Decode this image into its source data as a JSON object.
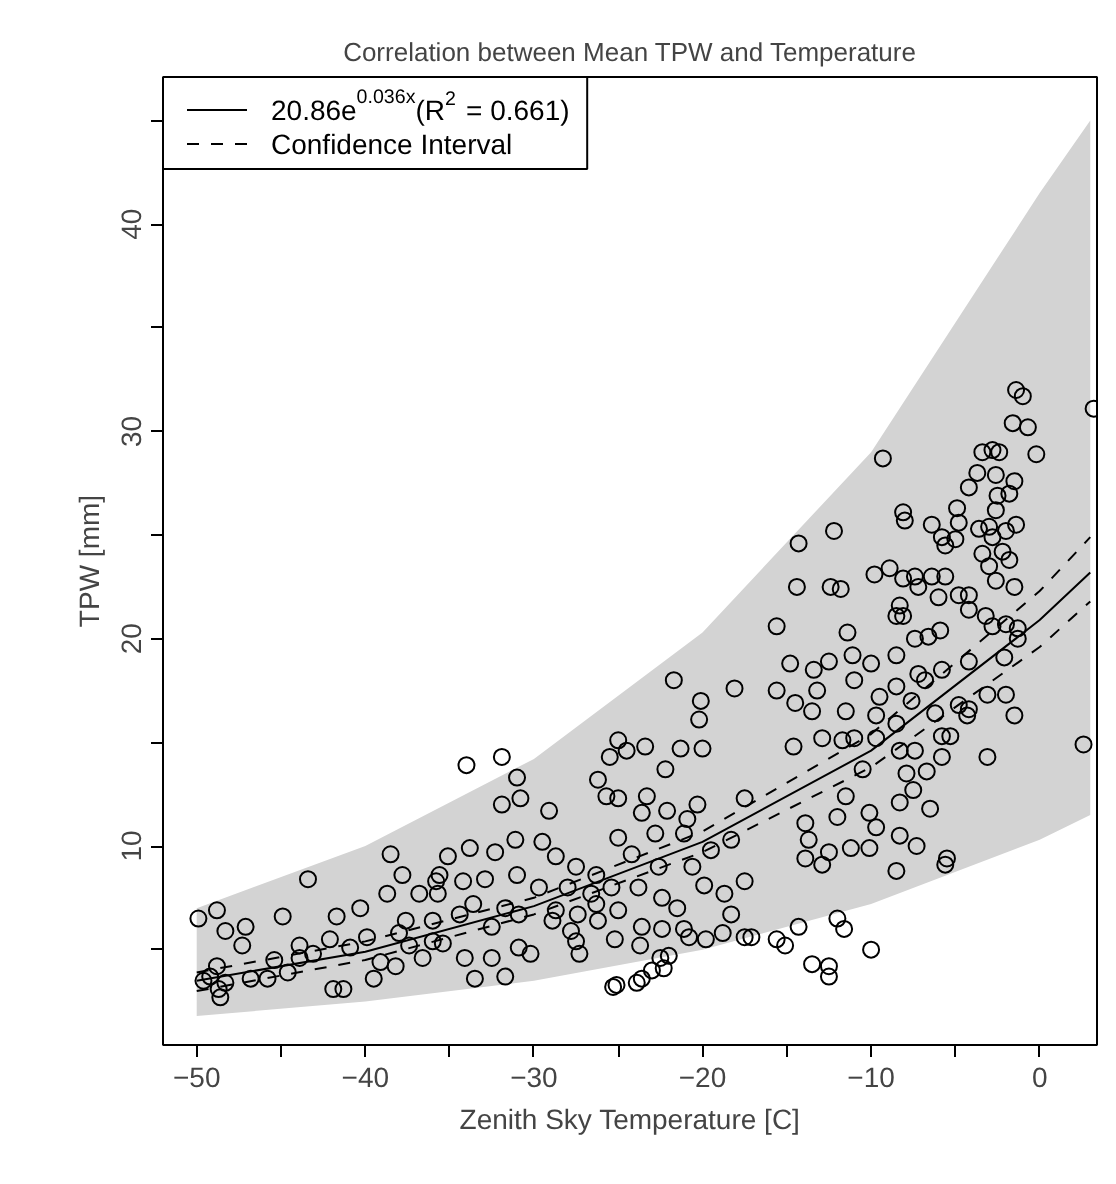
{
  "chart_data": {
    "type": "scatter",
    "title": "Correlation between Mean TPW and Temperature",
    "xlabel": "Zenith Sky Temperature [C]",
    "ylabel": "TPW [mm]",
    "xlim": [
      -52,
      3.4
    ],
    "ylim": [
      0.4,
      47.1
    ],
    "xticks": [
      {
        "value": -50,
        "label": "−50"
      },
      {
        "value": -45,
        "label": null
      },
      {
        "value": -40,
        "label": "−40"
      },
      {
        "value": -35,
        "label": null
      },
      {
        "value": -30,
        "label": "−30"
      },
      {
        "value": -25,
        "label": null
      },
      {
        "value": -20,
        "label": "−20"
      },
      {
        "value": -15,
        "label": null
      },
      {
        "value": -10,
        "label": "−10"
      },
      {
        "value": -5,
        "label": null
      },
      {
        "value": 0,
        "label": "0"
      }
    ],
    "yticks": [
      {
        "value": 5,
        "label": null
      },
      10,
      {
        "value": 15,
        "label": null
      },
      20,
      {
        "value": 25,
        "label": null
      },
      30,
      {
        "value": 35,
        "label": null
      },
      40,
      {
        "value": 45,
        "label": null
      }
    ],
    "grid": false,
    "legend": "top left",
    "series": [
      {
        "marker": "circle",
        "color": "#000000",
        "x": [
          -49.9,
          -48.8,
          -49.6,
          -48.8,
          -49.2,
          -48.7,
          -48.6,
          -48.3,
          -48.3,
          -47.1,
          -47.3,
          -46.8,
          -45.8,
          -44.9,
          -45.4,
          -44.6,
          -43.9,
          -43.4,
          -43.9,
          -43.1,
          -41.9,
          -41.3,
          -42.1,
          -41.7,
          -40.9,
          -40.3,
          -39.9,
          -39.5,
          -39.1,
          -38.7,
          -38.5,
          -37.8,
          -38.2,
          -37.6,
          -38.0,
          -37.4,
          -36.8,
          -36.6,
          -35.8,
          -36.0,
          -34.0,
          -31.9,
          -31.0,
          -31.9,
          -30.8,
          -29.1,
          -35.1,
          -33.8,
          -32.3,
          -31.1,
          -29.5,
          -35.6,
          -34.2,
          -32.9,
          -31.0,
          -28.7,
          -27.5,
          -26.3,
          -35.7,
          -33.6,
          -31.7,
          -29.7,
          -28.0,
          -26.6,
          -25.4,
          -36.0,
          -34.4,
          -32.5,
          -30.9,
          -28.7,
          -27.4,
          -26.2,
          -25.0,
          -35.4,
          -34.1,
          -32.5,
          -30.9,
          -30.2,
          -28.9,
          -27.8,
          -27.3,
          -33.5,
          -31.7,
          -25.3,
          -25.2,
          -26.3,
          -25.0,
          -25.0,
          -25.5,
          -25.0,
          -24.5,
          -23.4,
          -21.7,
          -20.1,
          -20.2,
          -20.0,
          -21.3,
          -22.2,
          -26.2,
          -25.7,
          -23.3,
          -23.6,
          -22.1,
          -20.3,
          -20.9,
          -21.1,
          -22.8,
          -24.2,
          -22.6,
          -20.6,
          -19.5,
          -18.3,
          -17.5,
          -18.1,
          -23.8,
          -22.4,
          -21.5,
          -19.9,
          -18.7,
          -17.5,
          -23.6,
          -22.4,
          -20.8,
          -18.8,
          -17.5,
          -23.7,
          -22.5,
          -23.0,
          -23.9,
          -18.3,
          -27.5,
          -1.4,
          -1.0,
          3.2,
          -1.6,
          -0.7,
          -9.3,
          -0.2,
          -3.4,
          -2.8,
          -2.4,
          -3.7,
          -2.6,
          -1.5,
          -4.2,
          -1.8,
          -2.5,
          -4.9,
          -2.6,
          -8.1,
          -8.0,
          -6.4,
          -4.8,
          -3.6,
          -3.0,
          -1.4,
          -5.8,
          -5.0,
          -2.8,
          -2.0,
          -5.6,
          -3.4,
          -2.2,
          -14.3,
          -12.2,
          -1.8,
          -8.9,
          -9.8,
          -8.1,
          -7.4,
          -6.4,
          -5.6,
          -3.0,
          -14.4,
          -12.4,
          -11.8,
          -7.2,
          -6.0,
          -4.8,
          -4.2,
          -2.6,
          -1.5,
          -8.3,
          -8.1,
          -4.2,
          -3.2,
          -2.0,
          -1.3,
          -15.6,
          -11.4,
          -8.5,
          -7.4,
          -6.6,
          -5.9,
          -1.3,
          -2.8,
          -8.5,
          -14.8,
          -13.4,
          -12.5,
          -11.1,
          -10.0,
          -11.0,
          -15.6,
          -13.2,
          -7.2,
          -5.8,
          -4.2,
          -2.1,
          -9.5,
          -8.5,
          -6.8,
          -14.5,
          -13.5,
          -11.5,
          -9.7,
          -7.6,
          -6.2,
          -4.8,
          -4.2,
          -3.1,
          -2.0,
          -1.5,
          -14.6,
          -12.9,
          -11.7,
          -11.0,
          -9.7,
          -8.5,
          -5.8,
          -5.3,
          -4.3,
          2.6,
          -3.1,
          -7.4,
          -5.8,
          -8.3,
          -7.9,
          -6.7,
          -7.5,
          -6.5,
          -8.3,
          -10.5,
          -11.5,
          -10.1,
          -11.2,
          -10.1,
          -8.3,
          -7.3,
          -8.5,
          -5.5,
          -5.6,
          -12.5,
          -13.7,
          -13.9,
          -12.9,
          -9.7,
          -12.0,
          -13.9,
          -10.0,
          -13.5,
          -12.5,
          -12.5,
          -12.0,
          -11.6,
          -15.1,
          -15.6,
          -14.3,
          -17.1,
          -19.8,
          -21.1,
          -22.3,
          -22.0,
          -23.6,
          -25.1
        ],
        "values": [
          6.5,
          6.9,
          3.5,
          4.2,
          3.7,
          3.1,
          2.7,
          3.4,
          5.9,
          6.1,
          5.2,
          3.6,
          3.6,
          6.6,
          4.5,
          3.9,
          5.2,
          8.4,
          4.6,
          4.8,
          3.1,
          3.1,
          5.5,
          6.6,
          5.1,
          7.0,
          5.6,
          3.6,
          4.4,
          7.7,
          9.6,
          8.6,
          4.2,
          6.4,
          5.8,
          5.2,
          7.7,
          4.6,
          8.3,
          5.4,
          13.9,
          14.3,
          13.3,
          12.0,
          12.3,
          11.7,
          9.5,
          9.9,
          9.7,
          10.3,
          10.2,
          8.6,
          8.3,
          8.4,
          8.6,
          9.5,
          9.0,
          8.6,
          7.7,
          7.2,
          7.0,
          8.0,
          8.0,
          7.7,
          8.0,
          6.4,
          6.7,
          6.1,
          6.7,
          6.9,
          6.7,
          6.4,
          6.9,
          5.3,
          4.6,
          4.6,
          5.1,
          4.8,
          6.4,
          5.9,
          4.8,
          3.6,
          3.7,
          3.2,
          5.5,
          7.2,
          10.4,
          12.3,
          14.3,
          15.1,
          14.6,
          14.8,
          18.0,
          17.0,
          16.1,
          14.7,
          14.7,
          13.7,
          13.2,
          12.4,
          12.4,
          11.6,
          11.7,
          12.0,
          11.3,
          10.6,
          10.6,
          9.6,
          9.0,
          9.0,
          9.8,
          10.3,
          12.3,
          17.6,
          8.0,
          7.5,
          7.0,
          8.1,
          7.7,
          8.3,
          6.1,
          6.0,
          5.6,
          5.8,
          5.6,
          5.2,
          4.6,
          4.0,
          3.4,
          6.7,
          5.4,
          32.0,
          31.7,
          31.1,
          30.4,
          30.2,
          28.7,
          28.9,
          29.0,
          29.1,
          29.0,
          28.0,
          27.9,
          27.6,
          27.3,
          27.0,
          26.9,
          26.3,
          26.2,
          26.1,
          25.7,
          25.5,
          25.6,
          25.3,
          25.4,
          25.5,
          24.9,
          24.8,
          24.9,
          25.2,
          24.5,
          24.1,
          24.2,
          24.6,
          25.2,
          23.8,
          23.4,
          23.1,
          22.9,
          23.0,
          23.0,
          23.0,
          23.5,
          22.5,
          22.5,
          22.4,
          22.5,
          22.0,
          22.1,
          22.1,
          22.8,
          22.5,
          21.6,
          21.1,
          21.4,
          21.1,
          20.7,
          20.5,
          20.6,
          20.3,
          21.1,
          20.0,
          20.1,
          20.4,
          20.0,
          20.6,
          19.2,
          18.8,
          18.5,
          18.9,
          19.2,
          18.8,
          18.0,
          17.5,
          17.5,
          18.3,
          18.5,
          18.9,
          19.1,
          17.2,
          17.7,
          18.0,
          16.9,
          16.5,
          16.5,
          16.3,
          17.0,
          16.4,
          16.8,
          16.6,
          17.3,
          17.3,
          16.3,
          14.8,
          15.2,
          15.1,
          15.2,
          15.2,
          15.9,
          15.3,
          15.3,
          16.3,
          14.9,
          14.3,
          14.6,
          14.3,
          14.6,
          13.5,
          13.6,
          12.7,
          11.8,
          12.1,
          13.7,
          12.4,
          11.6,
          9.9,
          9.9,
          10.5,
          10.0,
          8.8,
          9.4,
          9.1,
          9.7,
          10.3,
          9.4,
          9.1,
          10.9,
          11.4,
          11.1,
          5.0,
          4.3,
          4.2,
          3.7,
          6.5,
          6.0,
          5.2,
          5.5,
          6.1,
          5.6,
          5.5,
          6.0,
          4.1,
          4.7,
          3.6,
          3.3
        ]
      },
      {
        "type": "line",
        "name": "20.86e$^{0.036x}$(R$^{2}$ = 0.661)",
        "color": "#000000",
        "line_style": "solid",
        "x": [
          -50,
          -40,
          -30,
          -20,
          -10,
          0,
          3
        ],
        "values": [
          3.5,
          4.9,
          7.1,
          10.2,
          14.6,
          20.9,
          23.2
        ],
        "lower": [
          1.8,
          2.5,
          3.5,
          5.0,
          7.2,
          10.3,
          11.5
        ],
        "upper": [
          7.0,
          10.0,
          14.2,
          20.3,
          29.0,
          41.5,
          45.0
        ]
      },
      {
        "type": "line",
        "name": "Confidence Interval",
        "color": "#000000",
        "line_style": "dashed",
        "x": [
          -50,
          -40,
          -30,
          -20,
          -10,
          0,
          3
        ],
        "values": [
          3.9,
          5.4,
          7.5,
          10.7,
          15.4,
          22.3,
          24.9
        ]
      },
      {
        "type": "line",
        "color": "#000000",
        "line_style": "dashed",
        "x": [
          -50,
          -40,
          -30,
          -20,
          -10,
          0,
          3
        ],
        "values": [
          3.0,
          4.5,
          6.7,
          9.7,
          13.8,
          19.6,
          21.8
        ]
      }
    ]
  }
}
